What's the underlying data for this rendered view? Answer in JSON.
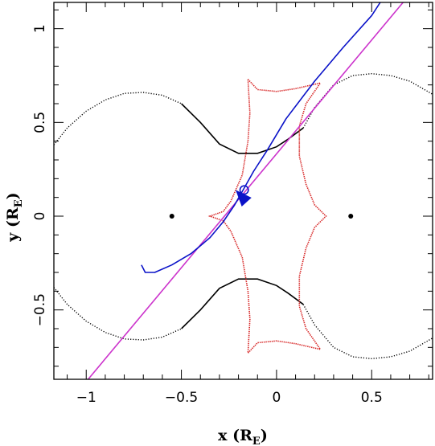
{
  "chart_data": {
    "type": "line",
    "title": "",
    "xlabel": {
      "text": "x",
      "unit_pre": "(R",
      "unit_sub": "E",
      "unit_post": ")"
    },
    "ylabel": {
      "text": "y",
      "unit_pre": "(R",
      "unit_sub": "E",
      "unit_post": ")"
    },
    "xlim": [
      -1.17,
      0.82
    ],
    "ylim": [
      -0.87,
      1.14
    ],
    "x_ticks": [
      -1,
      -0.5,
      0,
      0.5
    ],
    "x_tick_labels": [
      "−1",
      "−0.5",
      "0",
      "0.5"
    ],
    "y_ticks": [
      -0.5,
      0,
      0.5,
      1
    ],
    "y_tick_labels": [
      "−0.5",
      "0",
      "0.5",
      "1"
    ],
    "minor_tick_step": 0.1,
    "grid": false,
    "colors": {
      "critical_curve": "#000000",
      "caustic": "#d62020",
      "trajectory": "#0a12c8",
      "straight_line": "#cc33cc",
      "lens_point": "#000000",
      "axes": "#000000"
    },
    "lenses": [
      {
        "x": -0.55,
        "y": 0
      },
      {
        "x": 0.39,
        "y": 0
      }
    ],
    "critical_curve": {
      "dotted_tails": {
        "upper_left": [
          [
            -1.17,
            0.38
          ],
          [
            -1.1,
            0.47
          ],
          [
            -1.0,
            0.56
          ],
          [
            -0.9,
            0.62
          ],
          [
            -0.8,
            0.655
          ],
          [
            -0.7,
            0.66
          ],
          [
            -0.6,
            0.645
          ],
          [
            -0.5,
            0.6
          ]
        ],
        "upper_right": [
          [
            0.14,
            0.47
          ],
          [
            0.2,
            0.58
          ],
          [
            0.3,
            0.7
          ],
          [
            0.4,
            0.75
          ],
          [
            0.5,
            0.76
          ],
          [
            0.6,
            0.75
          ],
          [
            0.7,
            0.72
          ],
          [
            0.82,
            0.65
          ]
        ],
        "lower_left": [
          [
            -1.17,
            -0.38
          ],
          [
            -1.1,
            -0.47
          ],
          [
            -1.0,
            -0.56
          ],
          [
            -0.9,
            -0.62
          ],
          [
            -0.8,
            -0.655
          ],
          [
            -0.7,
            -0.66
          ],
          [
            -0.6,
            -0.645
          ],
          [
            -0.5,
            -0.6
          ]
        ],
        "lower_right": [
          [
            0.14,
            -0.47
          ],
          [
            0.2,
            -0.58
          ],
          [
            0.3,
            -0.7
          ],
          [
            0.4,
            -0.75
          ],
          [
            0.5,
            -0.76
          ],
          [
            0.6,
            -0.75
          ],
          [
            0.7,
            -0.72
          ],
          [
            0.82,
            -0.65
          ]
        ]
      },
      "solid_upper": [
        [
          -0.5,
          0.6
        ],
        [
          -0.4,
          0.5
        ],
        [
          -0.3,
          0.385
        ],
        [
          -0.2,
          0.335
        ],
        [
          -0.1,
          0.335
        ],
        [
          0.0,
          0.37
        ],
        [
          0.06,
          0.41
        ],
        [
          0.14,
          0.47
        ]
      ],
      "solid_lower": [
        [
          -0.5,
          -0.6
        ],
        [
          -0.4,
          -0.5
        ],
        [
          -0.3,
          -0.385
        ],
        [
          -0.2,
          -0.335
        ],
        [
          -0.1,
          -0.335
        ],
        [
          0.0,
          -0.37
        ],
        [
          0.06,
          -0.41
        ],
        [
          0.14,
          -0.47
        ]
      ]
    },
    "caustic": {
      "curve": [
        [
          -0.15,
          0.73
        ],
        [
          -0.1,
          0.675
        ],
        [
          0.0,
          0.665
        ],
        [
          0.1,
          0.68
        ],
        [
          0.23,
          0.71
        ],
        [
          0.155,
          0.6
        ],
        [
          0.12,
          0.48
        ],
        [
          0.12,
          0.32
        ],
        [
          0.155,
          0.17
        ],
        [
          0.2,
          0.06
        ],
        [
          0.26,
          0.0
        ],
        [
          0.2,
          -0.06
        ],
        [
          0.155,
          -0.17
        ],
        [
          0.12,
          -0.32
        ],
        [
          0.12,
          -0.48
        ],
        [
          0.155,
          -0.6
        ],
        [
          0.23,
          -0.71
        ],
        [
          0.1,
          -0.68
        ],
        [
          0.0,
          -0.665
        ],
        [
          -0.1,
          -0.675
        ],
        [
          -0.15,
          -0.73
        ],
        [
          -0.14,
          -0.55
        ],
        [
          -0.15,
          -0.4
        ],
        [
          -0.18,
          -0.22
        ],
        [
          -0.24,
          -0.08
        ],
        [
          -0.28,
          -0.025
        ],
        [
          -0.35,
          0.0
        ],
        [
          -0.28,
          0.025
        ],
        [
          -0.24,
          0.08
        ],
        [
          -0.18,
          0.22
        ],
        [
          -0.15,
          0.4
        ],
        [
          -0.14,
          0.55
        ],
        [
          -0.15,
          0.73
        ]
      ]
    },
    "straight_line": [
      [
        -0.99,
        -0.87
      ],
      [
        0.665,
        1.14
      ]
    ],
    "trajectory": [
      [
        -0.71,
        -0.26
      ],
      [
        -0.69,
        -0.3
      ],
      [
        -0.64,
        -0.3
      ],
      [
        -0.55,
        -0.26
      ],
      [
        -0.45,
        -0.2
      ],
      [
        -0.35,
        -0.115
      ],
      [
        -0.28,
        -0.03
      ],
      [
        -0.22,
        0.06
      ],
      [
        -0.17,
        0.15
      ],
      [
        -0.12,
        0.24
      ],
      [
        -0.05,
        0.35
      ],
      [
        0.05,
        0.52
      ],
      [
        0.2,
        0.72
      ],
      [
        0.35,
        0.9
      ],
      [
        0.5,
        1.07
      ],
      [
        0.545,
        1.14
      ]
    ],
    "trajectory_arrow": {
      "tip": [
        -0.215,
        0.14
      ],
      "from": [
        -0.175,
        0.095
      ]
    },
    "marker_circle": {
      "x": -0.17,
      "y": 0.14,
      "r": 0.022
    }
  }
}
